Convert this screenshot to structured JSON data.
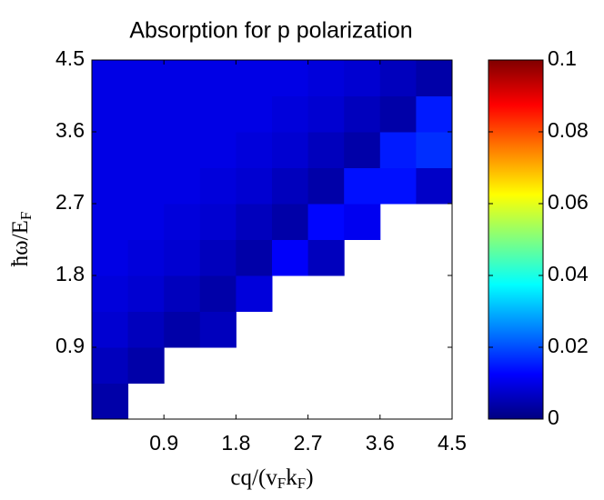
{
  "chart_data": {
    "type": "heatmap",
    "title": "Absorption for p polarization",
    "xlabel": [
      "cq/(v",
      "F",
      "k",
      "F",
      ")"
    ],
    "ylabel": [
      "ħω/E",
      "F"
    ],
    "xlim": [
      0,
      4.5
    ],
    "ylim": [
      0,
      4.5
    ],
    "xticks": [
      0.9,
      1.8,
      2.7,
      3.6,
      4.5
    ],
    "yticks": [
      0.9,
      1.8,
      2.7,
      3.6,
      4.5
    ],
    "x": [
      0.225,
      0.675,
      1.125,
      1.575,
      2.025,
      2.475,
      2.925,
      3.375,
      3.825,
      4.275
    ],
    "y": [
      0.225,
      0.675,
      1.125,
      1.575,
      2.025,
      2.475,
      2.925,
      3.375,
      3.825,
      4.275
    ],
    "z": [
      [
        0.004,
        null,
        null,
        null,
        null,
        null,
        null,
        null,
        null,
        null
      ],
      [
        0.006,
        0.004,
        null,
        null,
        null,
        null,
        null,
        null,
        null,
        null
      ],
      [
        0.008,
        0.006,
        0.004,
        0.006,
        null,
        null,
        null,
        null,
        null,
        null
      ],
      [
        0.009,
        0.008,
        0.006,
        0.004,
        0.009,
        null,
        null,
        null,
        null,
        null
      ],
      [
        0.01,
        0.009,
        0.008,
        0.006,
        0.004,
        0.012,
        0.006,
        null,
        null,
        null
      ],
      [
        0.01,
        0.01,
        0.009,
        0.008,
        0.006,
        0.004,
        0.013,
        0.011,
        null,
        null
      ],
      [
        0.01,
        0.01,
        0.01,
        0.009,
        0.008,
        0.006,
        0.004,
        0.014,
        0.014,
        0.007
      ],
      [
        0.01,
        0.01,
        0.01,
        0.01,
        0.009,
        0.008,
        0.006,
        0.004,
        0.015,
        0.017
      ],
      [
        0.01,
        0.01,
        0.01,
        0.01,
        0.01,
        0.009,
        0.008,
        0.006,
        0.004,
        0.015
      ],
      [
        0.01,
        0.01,
        0.01,
        0.01,
        0.01,
        0.01,
        0.009,
        0.008,
        0.006,
        0.004
      ]
    ],
    "colormap": "jet",
    "clim": [
      0,
      0.1
    ],
    "cticks": [
      0,
      0.02,
      0.04,
      0.06,
      0.08,
      0.1
    ]
  }
}
